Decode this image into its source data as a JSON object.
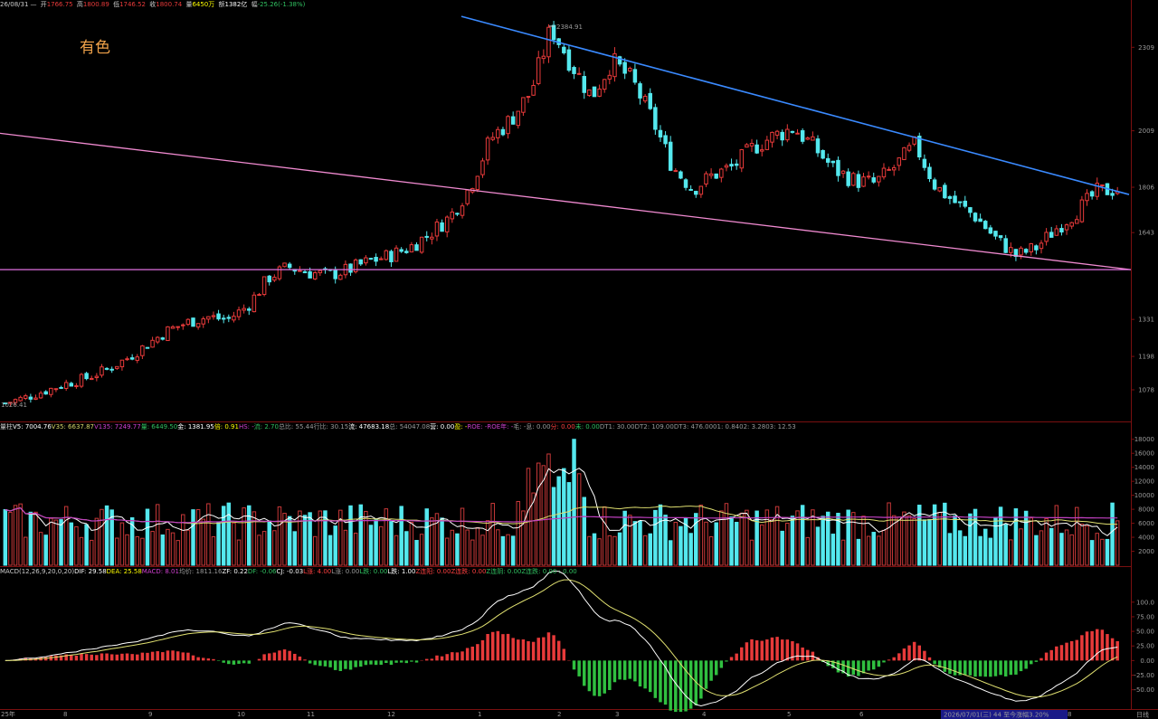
{
  "title": "有色",
  "header": {
    "date": "26/08/31",
    "open_label": "开",
    "open": "1766.75",
    "high_label": "高",
    "high": "1800.89",
    "low_label": "低",
    "low": "1746.52",
    "close_label": "收",
    "close": "1800.74",
    "volume_label": "量",
    "volume": "6450万",
    "amount_label": "额",
    "amount": "1382亿",
    "change_label": "幅",
    "change": "-25.26(-1.38%)"
  },
  "volume_header": {
    "name": "量柱",
    "items": [
      {
        "text": "V5: 7004.76",
        "color": "#ffffff"
      },
      {
        "text": "V35: 6637.87",
        "color": "#d6d66a"
      },
      {
        "text": "V135: 7249.77",
        "color": "#d040d0"
      },
      {
        "text": "量: 6449.50",
        "color": "#30c060"
      },
      {
        "text": "金: 1381.95",
        "color": "#ffffff"
      },
      {
        "text": "倍: 0.91",
        "color": "#ffff00"
      },
      {
        "text": "HS: -",
        "color": "#d040d0"
      },
      {
        "text": "流: 2.70",
        "color": "#30c060"
      },
      {
        "text": "总比: 55.44",
        "color": "#9a9a9a"
      },
      {
        "text": "行比: 30.15",
        "color": "#9a9a9a"
      },
      {
        "text": "流: 47683.18",
        "color": "#ffffff"
      },
      {
        "text": "总: 54047.08",
        "color": "#9a9a9a"
      },
      {
        "text": "营: 0.00",
        "color": "#ffffff"
      },
      {
        "text": "盈: -",
        "color": "#ffff00"
      },
      {
        "text": "ROE: -",
        "color": "#d040d0"
      },
      {
        "text": "ROE年: -",
        "color": "#d040d0"
      },
      {
        "text": "毛: -",
        "color": "#9a9a9a"
      },
      {
        "text": "息: 0.00",
        "color": "#9a9a9a"
      },
      {
        "text": "分: 0.00",
        "color": "#ff4040"
      },
      {
        "text": "未: 0.00",
        "color": "#30c060"
      },
      {
        "text": "DT1: 30.00",
        "color": "#9a9a9a"
      },
      {
        "text": "DT2: 109.00",
        "color": "#9a9a9a"
      },
      {
        "text": "DT3: 476.00",
        "color": "#9a9a9a"
      },
      {
        "text": "01: 0.84",
        "color": "#9a9a9a"
      },
      {
        "text": "02: 3.28",
        "color": "#9a9a9a"
      },
      {
        "text": "03: 12.53",
        "color": "#9a9a9a"
      }
    ]
  },
  "macd_header": {
    "name": "MACD(12,26,9,20,0,20)",
    "items": [
      {
        "text": "DIF: 29.58",
        "color": "#ffffff"
      },
      {
        "text": "DEA: 25.58",
        "color": "#ffff00"
      },
      {
        "text": "MACD: 8.01",
        "color": "#d040d0"
      },
      {
        "text": "均价: 1811.16",
        "color": "#9a9a9a"
      },
      {
        "text": "ZF: 0.22",
        "color": "#ffffff"
      },
      {
        "text": "DF: -0.06",
        "color": "#30c060"
      },
      {
        "text": "CJ: -0.03",
        "color": "#ffffff"
      },
      {
        "text": "L涨: 4.00",
        "color": "#ff4040"
      },
      {
        "text": "L涨: 0.00",
        "color": "#9a9a9a"
      },
      {
        "text": "L跌: 0.00",
        "color": "#30c060"
      },
      {
        "text": "L跌: 1.00",
        "color": "#ffffff"
      },
      {
        "text": "Z连阳: 0.00",
        "color": "#ff4040"
      },
      {
        "text": "Z连跌: 0.00",
        "color": "#ff4040"
      },
      {
        "text": "Z连阴: 0.00",
        "color": "#30c060"
      },
      {
        "text": "Z连跌: 0.00 : 0.00",
        "color": "#30c060"
      }
    ]
  },
  "footer": {
    "year_label": "25年",
    "months": [
      "8",
      "9",
      "10",
      "11",
      "12",
      "1",
      "2",
      "3",
      "4",
      "5",
      "6",
      "7",
      "8"
    ],
    "range_text": "2026/07/01(三) 44 至今涨幅3.20%",
    "period": "日线"
  },
  "colors": {
    "up": "#e83a3a",
    "down": "#54e8ee",
    "trend_upper": "#3a8aff",
    "trend_lower": "#f08ad0",
    "support": "#e070e0",
    "ma_white": "#ffffff",
    "ma_yellow": "#e0e070",
    "ma_purple": "#c040c0"
  },
  "chart_data": [
    {
      "type": "candlestick",
      "title": "有色",
      "y_ticks": [
        "2309",
        "2009",
        "1806",
        "1643",
        "1331",
        "1198",
        "1078"
      ],
      "price_labels": {
        "max": "2384.91",
        "min": "1026.41"
      },
      "ylim": [
        1000,
        2440
      ],
      "x_month_labels": [
        "8",
        "9",
        "10",
        "11",
        "12",
        "1",
        "2",
        "3",
        "4",
        "5",
        "6",
        "7",
        "8"
      ],
      "approx_close": [
        1030,
        1050,
        1075,
        1100,
        1120,
        1150,
        1190,
        1240,
        1290,
        1320,
        1340,
        1330,
        1380,
        1480,
        1520,
        1500,
        1490,
        1510,
        1540,
        1560,
        1590,
        1640,
        1700,
        1810,
        1980,
        2050,
        2150,
        2380,
        2250,
        2130,
        2260,
        2190,
        2050,
        1880,
        1800,
        1850,
        1880,
        1950,
        1990,
        2020,
        1950,
        1870,
        1830,
        1820,
        1880,
        1960,
        1810,
        1750,
        1700,
        1620,
        1560,
        1590,
        1660,
        1720,
        1790,
        1800
      ],
      "lines": [
        {
          "name": "",
          "type": "trend",
          "from": [
            0,
            2020
          ],
          "to": [
            1,
            1780
          ]
        },
        {
          "name": "",
          "type": "trend",
          "from": [
            0,
            2000
          ],
          "to": [
            1,
            1510
          ]
        },
        {
          "name": "",
          "type": "support",
          "value": 1510
        }
      ]
    },
    {
      "type": "bar",
      "title": "量柱",
      "y_ticks": [
        "18000",
        "16000",
        "14000",
        "12000",
        "10000",
        "8000",
        "6000",
        "4000",
        "2000"
      ],
      "ylim": [
        0,
        19000
      ]
    },
    {
      "type": "bar",
      "title": "MACD(12,26,9,20,0,20)",
      "y_ticks": [
        "100.0",
        "75.00",
        "50.00",
        "25.00",
        "0.00",
        "-25.00",
        "-50.00"
      ],
      "ylim": [
        -80,
        140
      ],
      "series": [
        {
          "name": "DIF",
          "last": 29.58
        },
        {
          "name": "DEA",
          "last": 25.58
        },
        {
          "name": "MACD",
          "last": 8.01
        }
      ]
    }
  ]
}
